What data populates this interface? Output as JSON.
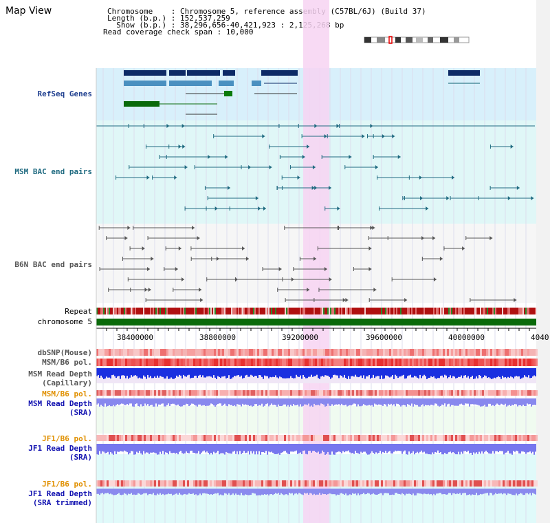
{
  "title": "Map View",
  "info": {
    "chromosome_label": "Chromosome    : Chromosome 5, reference assembly (C57BL/6J) (Build 37)",
    "length_label": "Length (b.p.) : 152,537,259",
    "show_label": "  Show (b.p.) : 38,296,656-40,421,923 : 2,125,268 bp",
    "coverage_label": "Read coverage check span : 10,000"
  },
  "tracks": {
    "refseq": "RefSeq Genes",
    "msm_bac": "MSM BAC end pairs",
    "b6n_bac": "B6N BAC end pairs",
    "repeat": "Repeat",
    "chromosome": "chromosome 5",
    "dbsnp": "dbSNP(Mouse)",
    "msm_b6_pol": "MSM/B6 pol.",
    "msm_depth_cap": "MSM Read Depth\n(Capillary)",
    "msm_b6_pol_2": "MSM/B6 pol.",
    "msm_depth_sra": "MSM Read Depth\n(SRA)",
    "jf1_b6_pol": "JF1/B6 pol.",
    "jf1_depth_sra": "JF1 Read Depth\n(SRA)",
    "jf1_b6_pol_2": "JF1/B6 pol.",
    "jf1_depth_trim": "JF1 Read Depth\n(SRA trimmed)"
  },
  "axis": {
    "ticks": [
      "38400000",
      "38800000",
      "39200000",
      "39600000",
      "40000000",
      "4040"
    ]
  },
  "colors": {
    "highlight": "#f7d3f2",
    "refseq_bg": "#d8f0fb",
    "msm_bg": "#e0f7f7",
    "b6n_bg": "#f6f6f6",
    "chromosome": "#0a6a0a",
    "depth_cap": "#1a2fe0",
    "depth_sra": "#8888ee",
    "pol_red": "#e84a4a"
  }
}
